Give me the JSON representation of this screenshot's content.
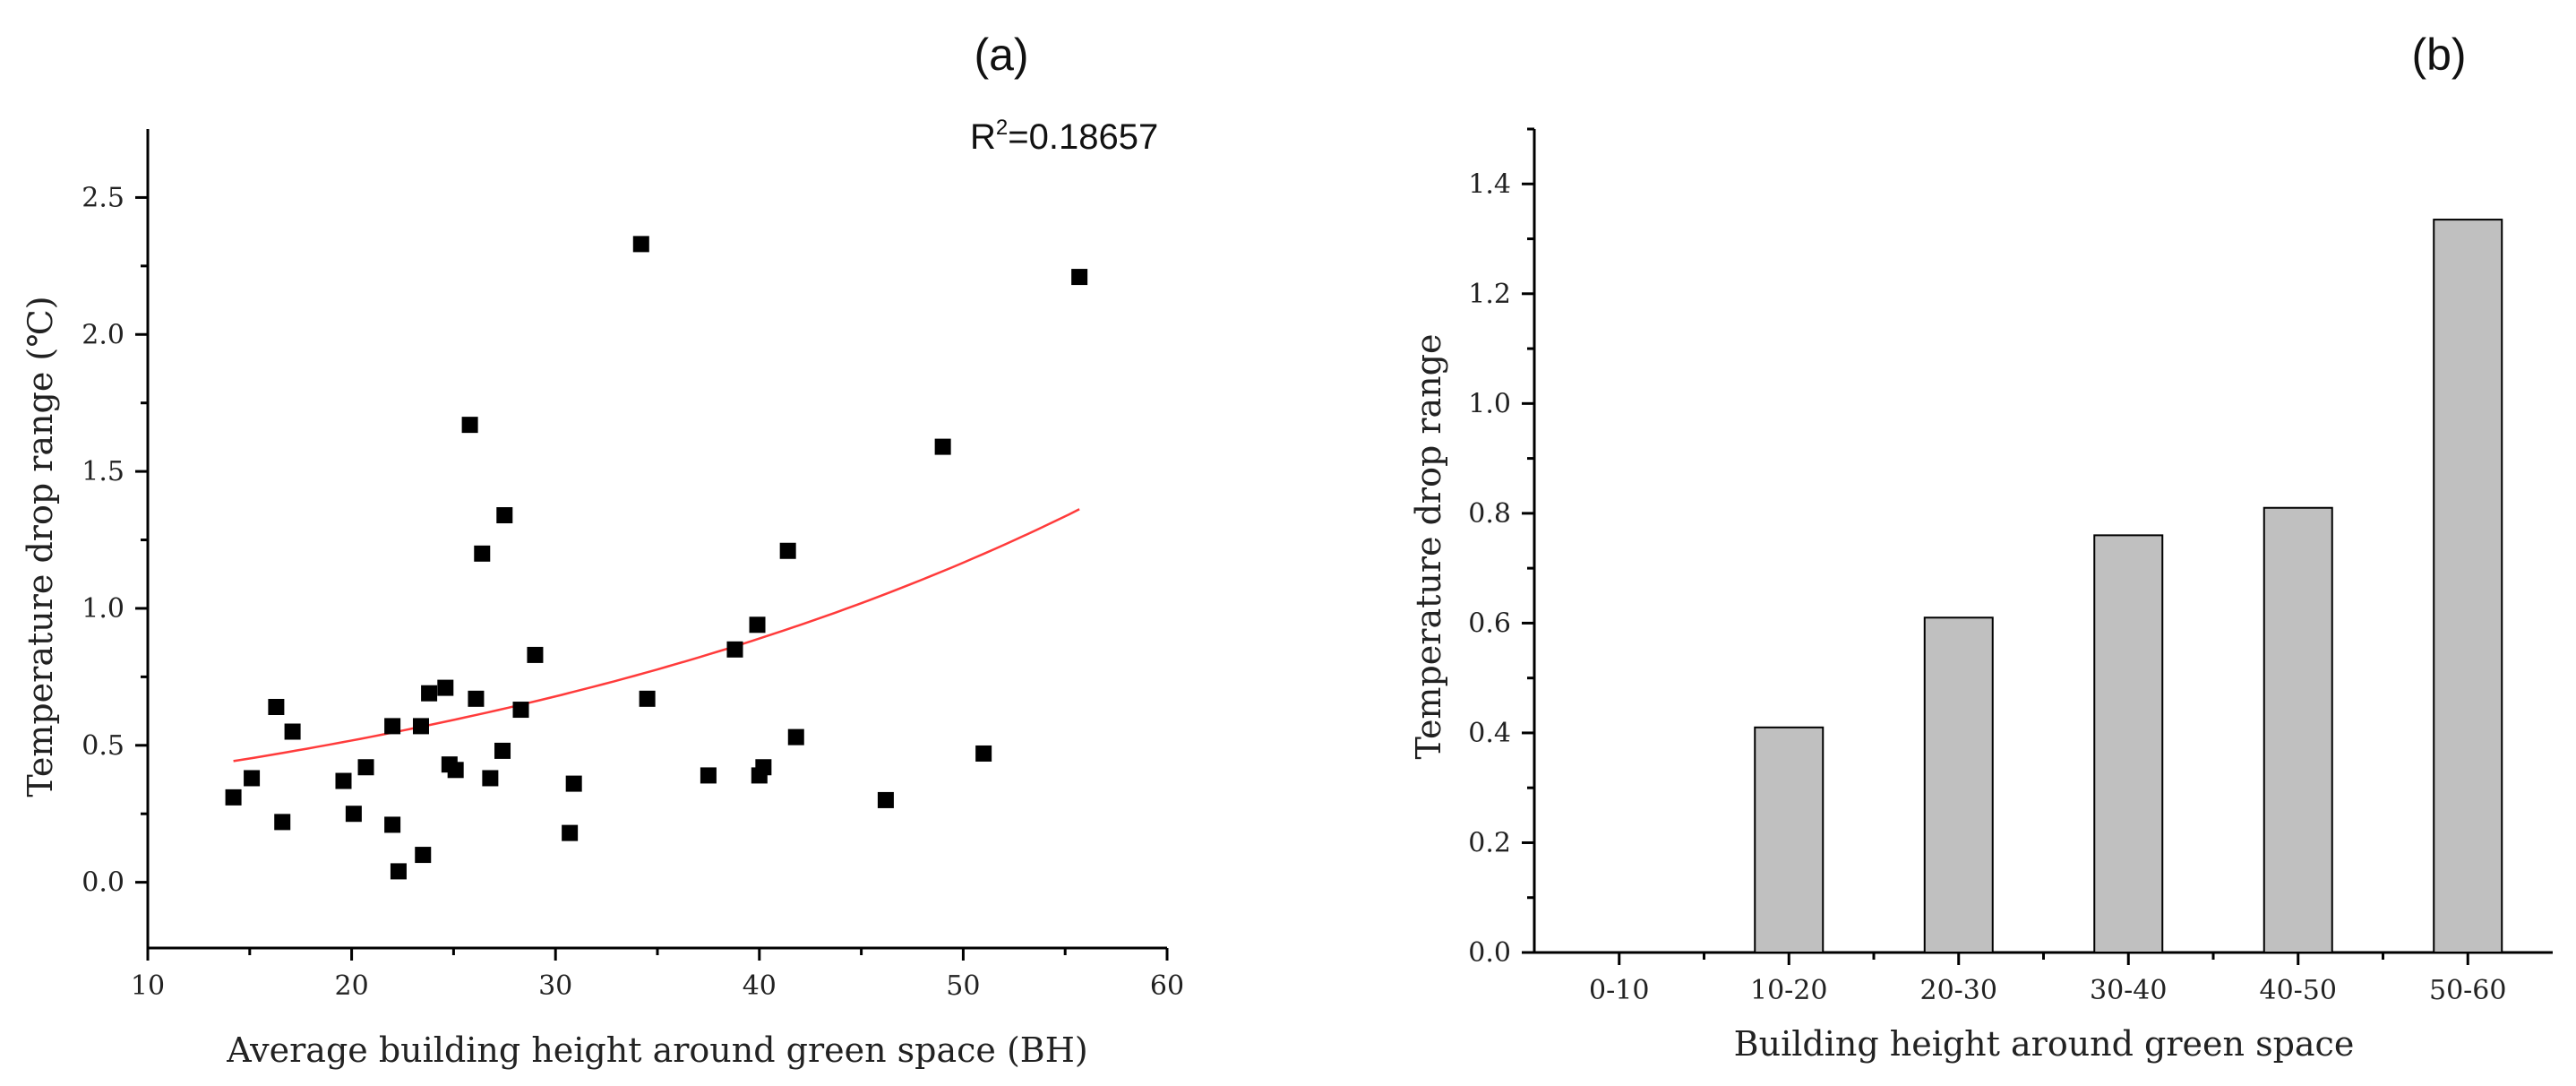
{
  "chart_data": [
    {
      "type": "scatter",
      "panel_label": "(a)",
      "annotation": "R²=0.18657",
      "annotation_base": "R",
      "annotation_sup": "2",
      "annotation_rest": "=0.18657",
      "xlabel": "Average building height around green space (BH)",
      "ylabel": "Temperature drop range (℃)",
      "xlim": [
        10,
        60
      ],
      "ylim": [
        -0.24,
        2.75
      ],
      "xticks": [
        "10",
        "20",
        "30",
        "40",
        "50",
        "60"
      ],
      "yticks": [
        "0.0",
        "0.5",
        "1.0",
        "1.5",
        "2.0",
        "2.5"
      ],
      "marker_color": "#000000",
      "fit_color": "#ff3b3b",
      "fit": {
        "a": 0.301,
        "b": 0.0271,
        "x_from": 14.2,
        "x_to": 55.7
      },
      "points": [
        [
          14.2,
          0.31
        ],
        [
          15.1,
          0.38
        ],
        [
          16.3,
          0.64
        ],
        [
          16.6,
          0.22
        ],
        [
          17.1,
          0.55
        ],
        [
          19.6,
          0.37
        ],
        [
          20.1,
          0.25
        ],
        [
          20.7,
          0.42
        ],
        [
          22.0,
          0.57
        ],
        [
          22.0,
          0.21
        ],
        [
          22.3,
          0.04
        ],
        [
          23.4,
          0.57
        ],
        [
          23.5,
          0.1
        ],
        [
          23.8,
          0.69
        ],
        [
          24.6,
          0.71
        ],
        [
          24.8,
          0.43
        ],
        [
          25.1,
          0.41
        ],
        [
          25.8,
          1.67
        ],
        [
          26.1,
          0.67
        ],
        [
          26.4,
          1.2
        ],
        [
          26.8,
          0.38
        ],
        [
          27.4,
          0.48
        ],
        [
          27.5,
          1.34
        ],
        [
          28.3,
          0.63
        ],
        [
          29.0,
          0.83
        ],
        [
          30.7,
          0.18
        ],
        [
          30.9,
          0.36
        ],
        [
          34.2,
          2.33
        ],
        [
          34.5,
          0.67
        ],
        [
          37.5,
          0.39
        ],
        [
          38.8,
          0.85
        ],
        [
          39.9,
          0.94
        ],
        [
          40.0,
          0.39
        ],
        [
          40.2,
          0.42
        ],
        [
          41.4,
          1.21
        ],
        [
          41.8,
          0.53
        ],
        [
          46.2,
          0.3
        ],
        [
          49.0,
          1.59
        ],
        [
          51.0,
          0.47
        ],
        [
          55.7,
          2.21
        ]
      ]
    },
    {
      "type": "bar",
      "panel_label": "(b)",
      "xlabel": "Building height around green space",
      "ylabel": "Temperature drop range",
      "categories": [
        "0-10",
        "10-20",
        "20-30",
        "30-40",
        "40-50",
        "50-60"
      ],
      "values": [
        0,
        0.41,
        0.61,
        0.76,
        0.81,
        1.335
      ],
      "ylim": [
        0,
        1.5
      ],
      "yticks": [
        "0.0",
        "0.2",
        "0.4",
        "0.6",
        "0.8",
        "1.0",
        "1.2",
        "1.4"
      ],
      "bar_color": "#c0c0c0",
      "bar_edge_color": "#000000"
    }
  ]
}
